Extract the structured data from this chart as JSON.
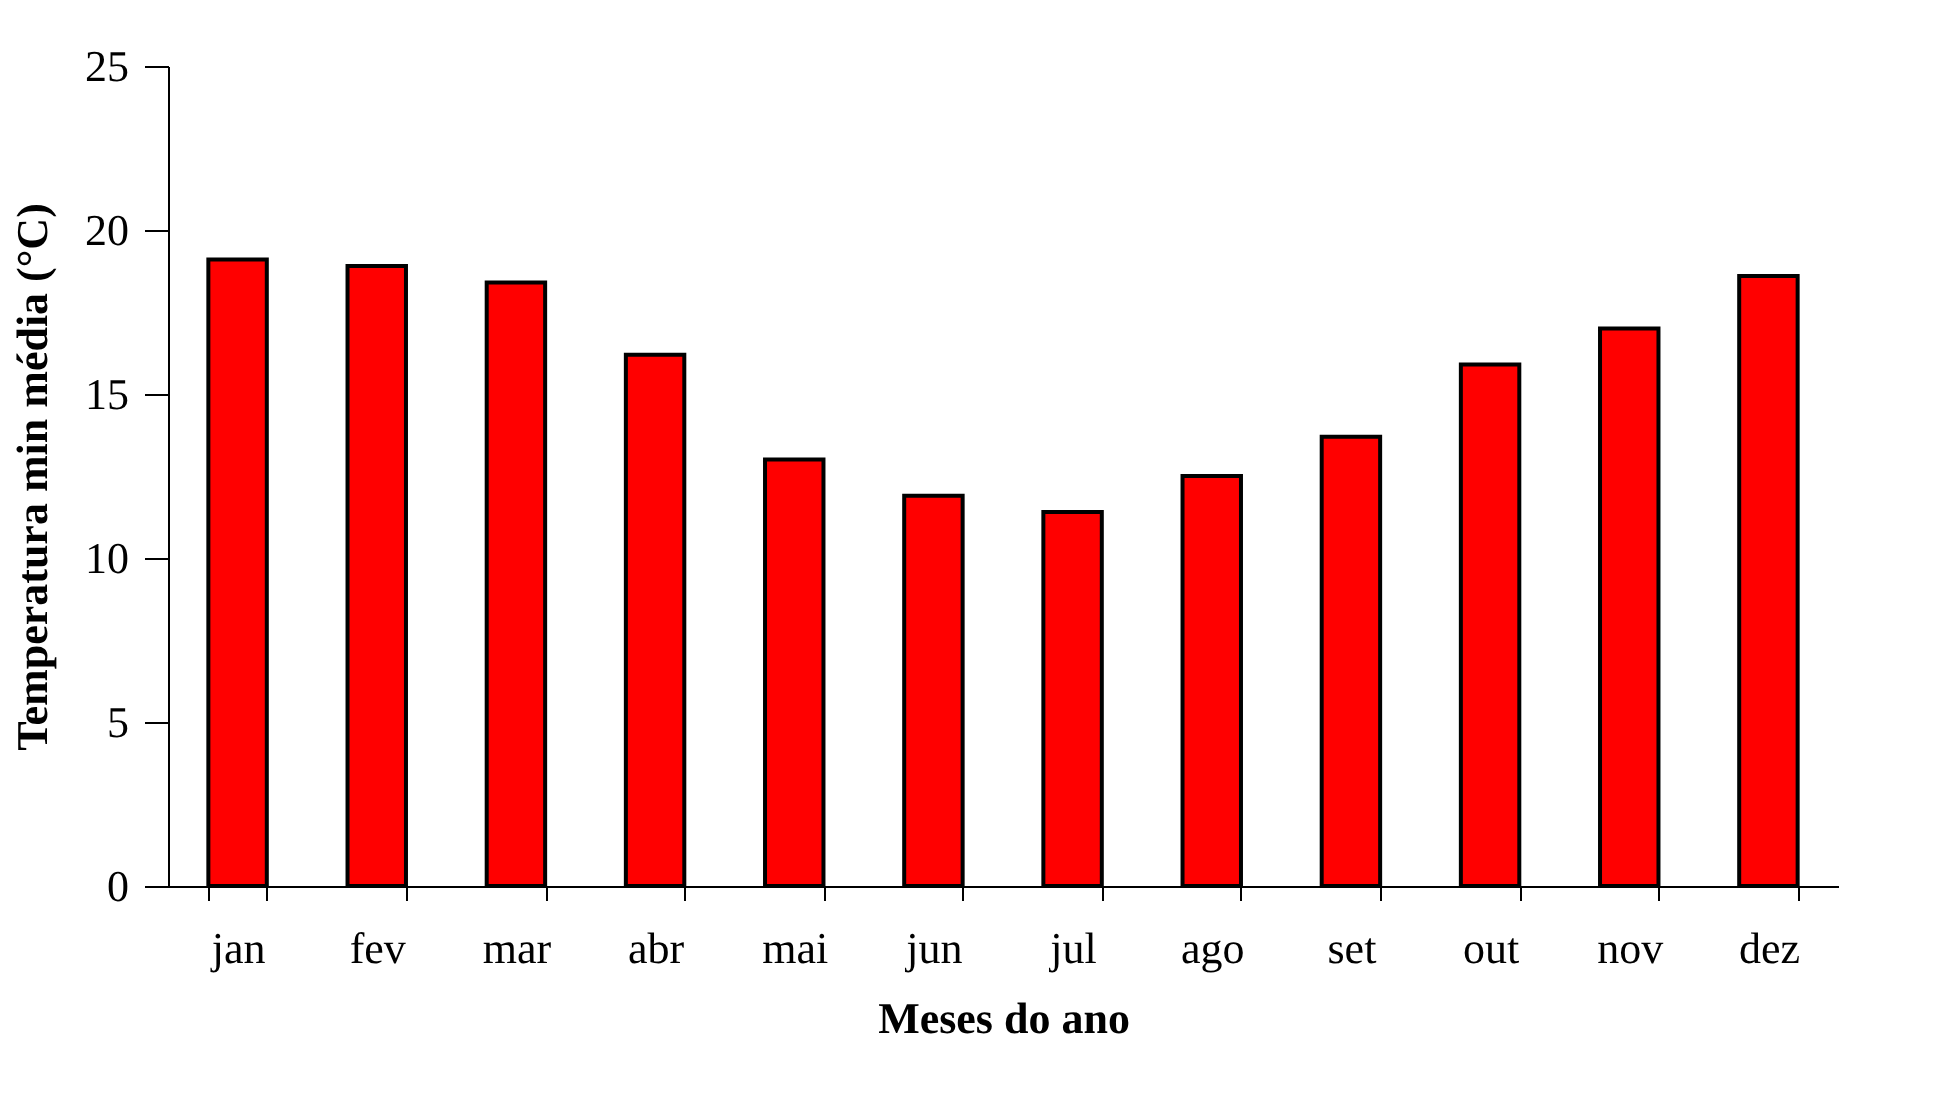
{
  "chart_data": {
    "type": "bar",
    "xlabel": "Meses do ano",
    "ylabel": "Temperatura min  média (°C)",
    "categories": [
      "jan",
      "fev",
      "mar",
      "abr",
      "mai",
      "jun",
      "jul",
      "ago",
      "set",
      "out",
      "nov",
      "dez"
    ],
    "values": [
      19.1,
      18.9,
      18.4,
      16.2,
      13.0,
      11.9,
      11.4,
      12.5,
      13.7,
      15.9,
      17.0,
      18.6
    ],
    "color": "#ff0000",
    "ylim": [
      0,
      25
    ],
    "yticks": [
      0,
      5,
      10,
      15,
      20,
      25
    ],
    "grid": false
  }
}
